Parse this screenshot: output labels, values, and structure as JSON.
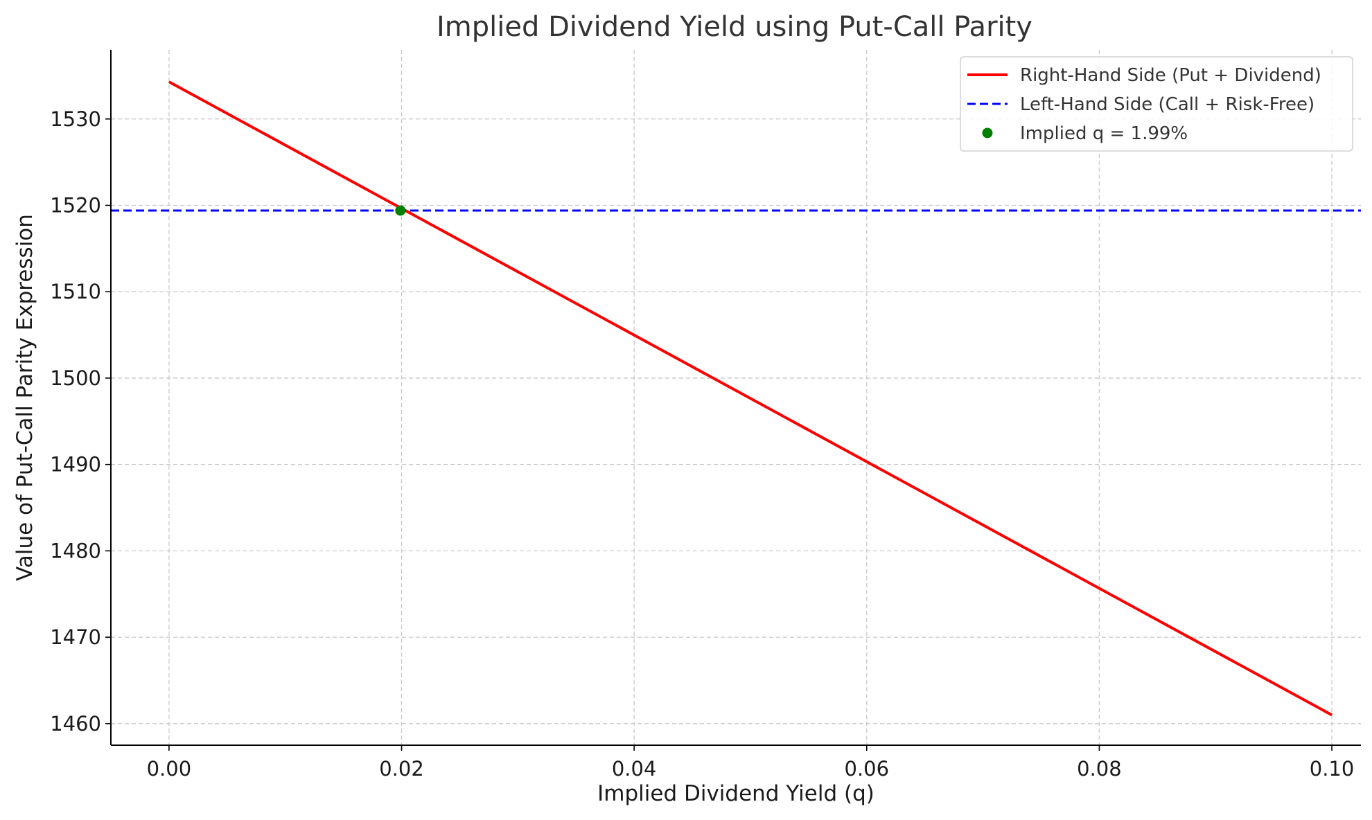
{
  "chart_data": {
    "type": "line",
    "title": "Implied Dividend Yield using Put-Call Parity",
    "xlabel": "Implied Dividend Yield (q)",
    "ylabel": "Value of Put-Call Parity Expression",
    "xlim": [
      -0.005,
      0.1025
    ],
    "ylim": [
      1457.5,
      1538
    ],
    "x_ticks": [
      0.0,
      0.02,
      0.04,
      0.06,
      0.08,
      0.1
    ],
    "x_tick_labels": [
      "0.00",
      "0.02",
      "0.04",
      "0.06",
      "0.08",
      "0.10"
    ],
    "y_ticks": [
      1460,
      1470,
      1480,
      1490,
      1500,
      1510,
      1520,
      1530
    ],
    "y_tick_labels": [
      "1460",
      "1470",
      "1480",
      "1490",
      "1500",
      "1510",
      "1520",
      "1530"
    ],
    "grid": true,
    "legend_position": "top-right",
    "series": [
      {
        "name": "Right-Hand Side (Put + Dividend)",
        "kind": "line",
        "style": "solid",
        "color": "#ff0000",
        "x": [
          0.0,
          0.1
        ],
        "y": [
          1534.3,
          1461.0
        ]
      },
      {
        "name": "Left-Hand Side (Call + Risk-Free)",
        "kind": "hline",
        "style": "dashed",
        "color": "#0000ff",
        "y": 1519.4
      },
      {
        "name": "Implied q = 1.99%",
        "kind": "point",
        "color": "#008000",
        "x": [
          0.0199
        ],
        "y": [
          1519.4
        ]
      }
    ]
  }
}
